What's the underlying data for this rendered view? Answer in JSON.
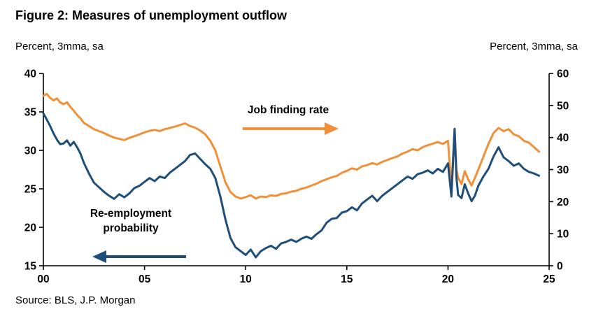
{
  "figure": {
    "title": "Figure 2: Measures of unemployment outflow",
    "left_axis_units": "Percent, 3mma, sa",
    "right_axis_units": "Percent, 3mma, sa",
    "source": "Source: BLS, J.P. Morgan"
  },
  "annotations": {
    "job_finding": "Job finding rate",
    "reemployment": "Re-employment probability"
  },
  "chart_data": {
    "type": "line",
    "title": "Figure 2: Measures of unemployment outflow",
    "grid": false,
    "legend_position": "annotations with arrows inside plot",
    "x_axis": {
      "tick_labels": [
        "00",
        "05",
        "10",
        "15",
        "20",
        "25"
      ],
      "tick_years": [
        2000,
        2005,
        2010,
        2015,
        2020,
        2025
      ],
      "range": [
        2000,
        2025
      ]
    },
    "left_axis": {
      "label": "Percent, 3mma, sa",
      "ticks": [
        15,
        20,
        25,
        30,
        35,
        40
      ],
      "range": [
        15,
        40
      ],
      "series": "Re-employment probability"
    },
    "right_axis": {
      "label": "Percent, 3mma, sa",
      "ticks": [
        0,
        10,
        20,
        30,
        40,
        50,
        60
      ],
      "range": [
        0,
        60
      ],
      "series": "Job finding rate"
    },
    "colors": {
      "job_finding": "#F0913A",
      "reemployment": "#1F4E79",
      "axis": "#000000"
    },
    "series": [
      {
        "name": "Job finding rate",
        "axis": "right",
        "color": "#F0913A",
        "points": [
          [
            2000.0,
            53.0
          ],
          [
            2000.17,
            53.6
          ],
          [
            2000.33,
            52.4
          ],
          [
            2000.5,
            51.6
          ],
          [
            2000.67,
            52.2
          ],
          [
            2000.83,
            51.0
          ],
          [
            2001.0,
            50.4
          ],
          [
            2001.17,
            51.0
          ],
          [
            2001.33,
            49.6
          ],
          [
            2001.5,
            48.4
          ],
          [
            2001.67,
            47.0
          ],
          [
            2001.83,
            46.0
          ],
          [
            2002.0,
            44.6
          ],
          [
            2002.25,
            43.6
          ],
          [
            2002.5,
            42.6
          ],
          [
            2002.75,
            42.0
          ],
          [
            2003.0,
            41.4
          ],
          [
            2003.25,
            40.6
          ],
          [
            2003.5,
            40.0
          ],
          [
            2003.75,
            39.6
          ],
          [
            2004.0,
            39.2
          ],
          [
            2004.25,
            39.9
          ],
          [
            2004.5,
            40.4
          ],
          [
            2004.75,
            41.0
          ],
          [
            2005.0,
            41.6
          ],
          [
            2005.25,
            42.1
          ],
          [
            2005.5,
            42.4
          ],
          [
            2005.75,
            42.0
          ],
          [
            2006.0,
            42.6
          ],
          [
            2006.25,
            43.0
          ],
          [
            2006.5,
            43.4
          ],
          [
            2006.75,
            43.9
          ],
          [
            2007.0,
            44.4
          ],
          [
            2007.25,
            43.6
          ],
          [
            2007.5,
            43.1
          ],
          [
            2007.75,
            42.2
          ],
          [
            2008.0,
            41.0
          ],
          [
            2008.25,
            39.0
          ],
          [
            2008.5,
            36.0
          ],
          [
            2008.75,
            31.0
          ],
          [
            2009.0,
            26.0
          ],
          [
            2009.25,
            23.0
          ],
          [
            2009.5,
            21.6
          ],
          [
            2009.75,
            21.0
          ],
          [
            2010.0,
            21.4
          ],
          [
            2010.25,
            22.0
          ],
          [
            2010.5,
            21.0
          ],
          [
            2010.75,
            21.6
          ],
          [
            2011.0,
            21.4
          ],
          [
            2011.25,
            22.0
          ],
          [
            2011.5,
            21.8
          ],
          [
            2011.75,
            22.4
          ],
          [
            2012.0,
            22.6
          ],
          [
            2012.25,
            23.1
          ],
          [
            2012.5,
            23.4
          ],
          [
            2012.75,
            24.0
          ],
          [
            2013.0,
            24.4
          ],
          [
            2013.25,
            25.0
          ],
          [
            2013.5,
            25.6
          ],
          [
            2013.75,
            26.4
          ],
          [
            2014.0,
            27.0
          ],
          [
            2014.25,
            27.6
          ],
          [
            2014.5,
            28.0
          ],
          [
            2014.75,
            29.0
          ],
          [
            2015.0,
            29.6
          ],
          [
            2015.25,
            30.4
          ],
          [
            2015.5,
            30.0
          ],
          [
            2015.75,
            31.0
          ],
          [
            2016.0,
            31.4
          ],
          [
            2016.25,
            32.0
          ],
          [
            2016.5,
            31.6
          ],
          [
            2016.75,
            32.4
          ],
          [
            2017.0,
            33.0
          ],
          [
            2017.25,
            33.6
          ],
          [
            2017.5,
            34.1
          ],
          [
            2017.75,
            35.0
          ],
          [
            2018.0,
            35.6
          ],
          [
            2018.25,
            36.4
          ],
          [
            2018.5,
            36.0
          ],
          [
            2018.75,
            37.0
          ],
          [
            2019.0,
            37.6
          ],
          [
            2019.25,
            38.1
          ],
          [
            2019.5,
            38.6
          ],
          [
            2019.75,
            38.0
          ],
          [
            2020.0,
            39.0
          ],
          [
            2020.17,
            24.5
          ],
          [
            2020.33,
            42.6
          ],
          [
            2020.42,
            30.0
          ],
          [
            2020.5,
            27.5
          ],
          [
            2020.67,
            25.5
          ],
          [
            2020.83,
            29.5
          ],
          [
            2021.0,
            27.0
          ],
          [
            2021.17,
            25.0
          ],
          [
            2021.33,
            27.4
          ],
          [
            2021.5,
            30.0
          ],
          [
            2021.75,
            34.0
          ],
          [
            2022.0,
            38.0
          ],
          [
            2022.25,
            41.4
          ],
          [
            2022.5,
            43.0
          ],
          [
            2022.75,
            42.0
          ],
          [
            2023.0,
            42.6
          ],
          [
            2023.25,
            41.0
          ],
          [
            2023.5,
            40.4
          ],
          [
            2023.75,
            39.0
          ],
          [
            2024.0,
            38.4
          ],
          [
            2024.25,
            37.0
          ],
          [
            2024.5,
            35.6
          ]
        ]
      },
      {
        "name": "Re-employment probability",
        "axis": "left",
        "color": "#1F4E79",
        "points": [
          [
            2000.0,
            34.8
          ],
          [
            2000.17,
            34.0
          ],
          [
            2000.33,
            33.2
          ],
          [
            2000.5,
            32.2
          ],
          [
            2000.67,
            31.4
          ],
          [
            2000.83,
            30.8
          ],
          [
            2001.0,
            30.9
          ],
          [
            2001.17,
            31.3
          ],
          [
            2001.33,
            30.6
          ],
          [
            2001.5,
            31.1
          ],
          [
            2001.67,
            30.4
          ],
          [
            2001.83,
            29.6
          ],
          [
            2002.0,
            28.4
          ],
          [
            2002.25,
            27.0
          ],
          [
            2002.5,
            25.8
          ],
          [
            2002.75,
            25.2
          ],
          [
            2003.0,
            24.6
          ],
          [
            2003.25,
            24.1
          ],
          [
            2003.5,
            23.7
          ],
          [
            2003.75,
            24.3
          ],
          [
            2004.0,
            23.9
          ],
          [
            2004.25,
            24.4
          ],
          [
            2004.5,
            25.1
          ],
          [
            2004.75,
            25.4
          ],
          [
            2005.0,
            25.9
          ],
          [
            2005.25,
            26.4
          ],
          [
            2005.5,
            26.0
          ],
          [
            2005.75,
            26.6
          ],
          [
            2006.0,
            26.4
          ],
          [
            2006.25,
            27.1
          ],
          [
            2006.5,
            27.6
          ],
          [
            2006.75,
            28.1
          ],
          [
            2007.0,
            28.6
          ],
          [
            2007.25,
            29.4
          ],
          [
            2007.5,
            29.6
          ],
          [
            2007.75,
            28.9
          ],
          [
            2008.0,
            28.2
          ],
          [
            2008.25,
            27.6
          ],
          [
            2008.5,
            26.4
          ],
          [
            2008.75,
            24.0
          ],
          [
            2009.0,
            21.0
          ],
          [
            2009.25,
            18.6
          ],
          [
            2009.5,
            17.4
          ],
          [
            2009.75,
            16.9
          ],
          [
            2010.0,
            16.4
          ],
          [
            2010.25,
            17.1
          ],
          [
            2010.5,
            16.1
          ],
          [
            2010.75,
            16.9
          ],
          [
            2011.0,
            17.3
          ],
          [
            2011.25,
            17.6
          ],
          [
            2011.5,
            17.2
          ],
          [
            2011.75,
            17.9
          ],
          [
            2012.0,
            18.1
          ],
          [
            2012.25,
            18.4
          ],
          [
            2012.5,
            18.1
          ],
          [
            2012.75,
            18.5
          ],
          [
            2013.0,
            18.8
          ],
          [
            2013.25,
            18.5
          ],
          [
            2013.5,
            19.1
          ],
          [
            2013.75,
            19.6
          ],
          [
            2014.0,
            20.6
          ],
          [
            2014.25,
            21.1
          ],
          [
            2014.5,
            21.2
          ],
          [
            2014.75,
            21.9
          ],
          [
            2015.0,
            22.1
          ],
          [
            2015.25,
            22.6
          ],
          [
            2015.5,
            22.2
          ],
          [
            2015.75,
            23.1
          ],
          [
            2016.0,
            23.6
          ],
          [
            2016.25,
            24.1
          ],
          [
            2016.5,
            23.4
          ],
          [
            2016.75,
            24.1
          ],
          [
            2017.0,
            24.6
          ],
          [
            2017.25,
            25.1
          ],
          [
            2017.5,
            25.6
          ],
          [
            2017.75,
            26.1
          ],
          [
            2018.0,
            26.6
          ],
          [
            2018.25,
            26.3
          ],
          [
            2018.5,
            26.9
          ],
          [
            2018.75,
            27.1
          ],
          [
            2019.0,
            27.4
          ],
          [
            2019.25,
            27.0
          ],
          [
            2019.5,
            27.6
          ],
          [
            2019.75,
            27.2
          ],
          [
            2020.0,
            28.3
          ],
          [
            2020.17,
            24.0
          ],
          [
            2020.33,
            32.8
          ],
          [
            2020.42,
            26.5
          ],
          [
            2020.5,
            24.2
          ],
          [
            2020.67,
            23.8
          ],
          [
            2020.83,
            25.6
          ],
          [
            2021.0,
            24.4
          ],
          [
            2021.17,
            23.4
          ],
          [
            2021.33,
            24.1
          ],
          [
            2021.5,
            25.4
          ],
          [
            2021.75,
            26.6
          ],
          [
            2022.0,
            27.6
          ],
          [
            2022.25,
            29.2
          ],
          [
            2022.5,
            30.4
          ],
          [
            2022.75,
            29.1
          ],
          [
            2023.0,
            28.6
          ],
          [
            2023.25,
            28.0
          ],
          [
            2023.5,
            28.3
          ],
          [
            2023.75,
            27.6
          ],
          [
            2024.0,
            27.2
          ],
          [
            2024.25,
            27.0
          ],
          [
            2024.5,
            26.7
          ]
        ]
      }
    ]
  }
}
